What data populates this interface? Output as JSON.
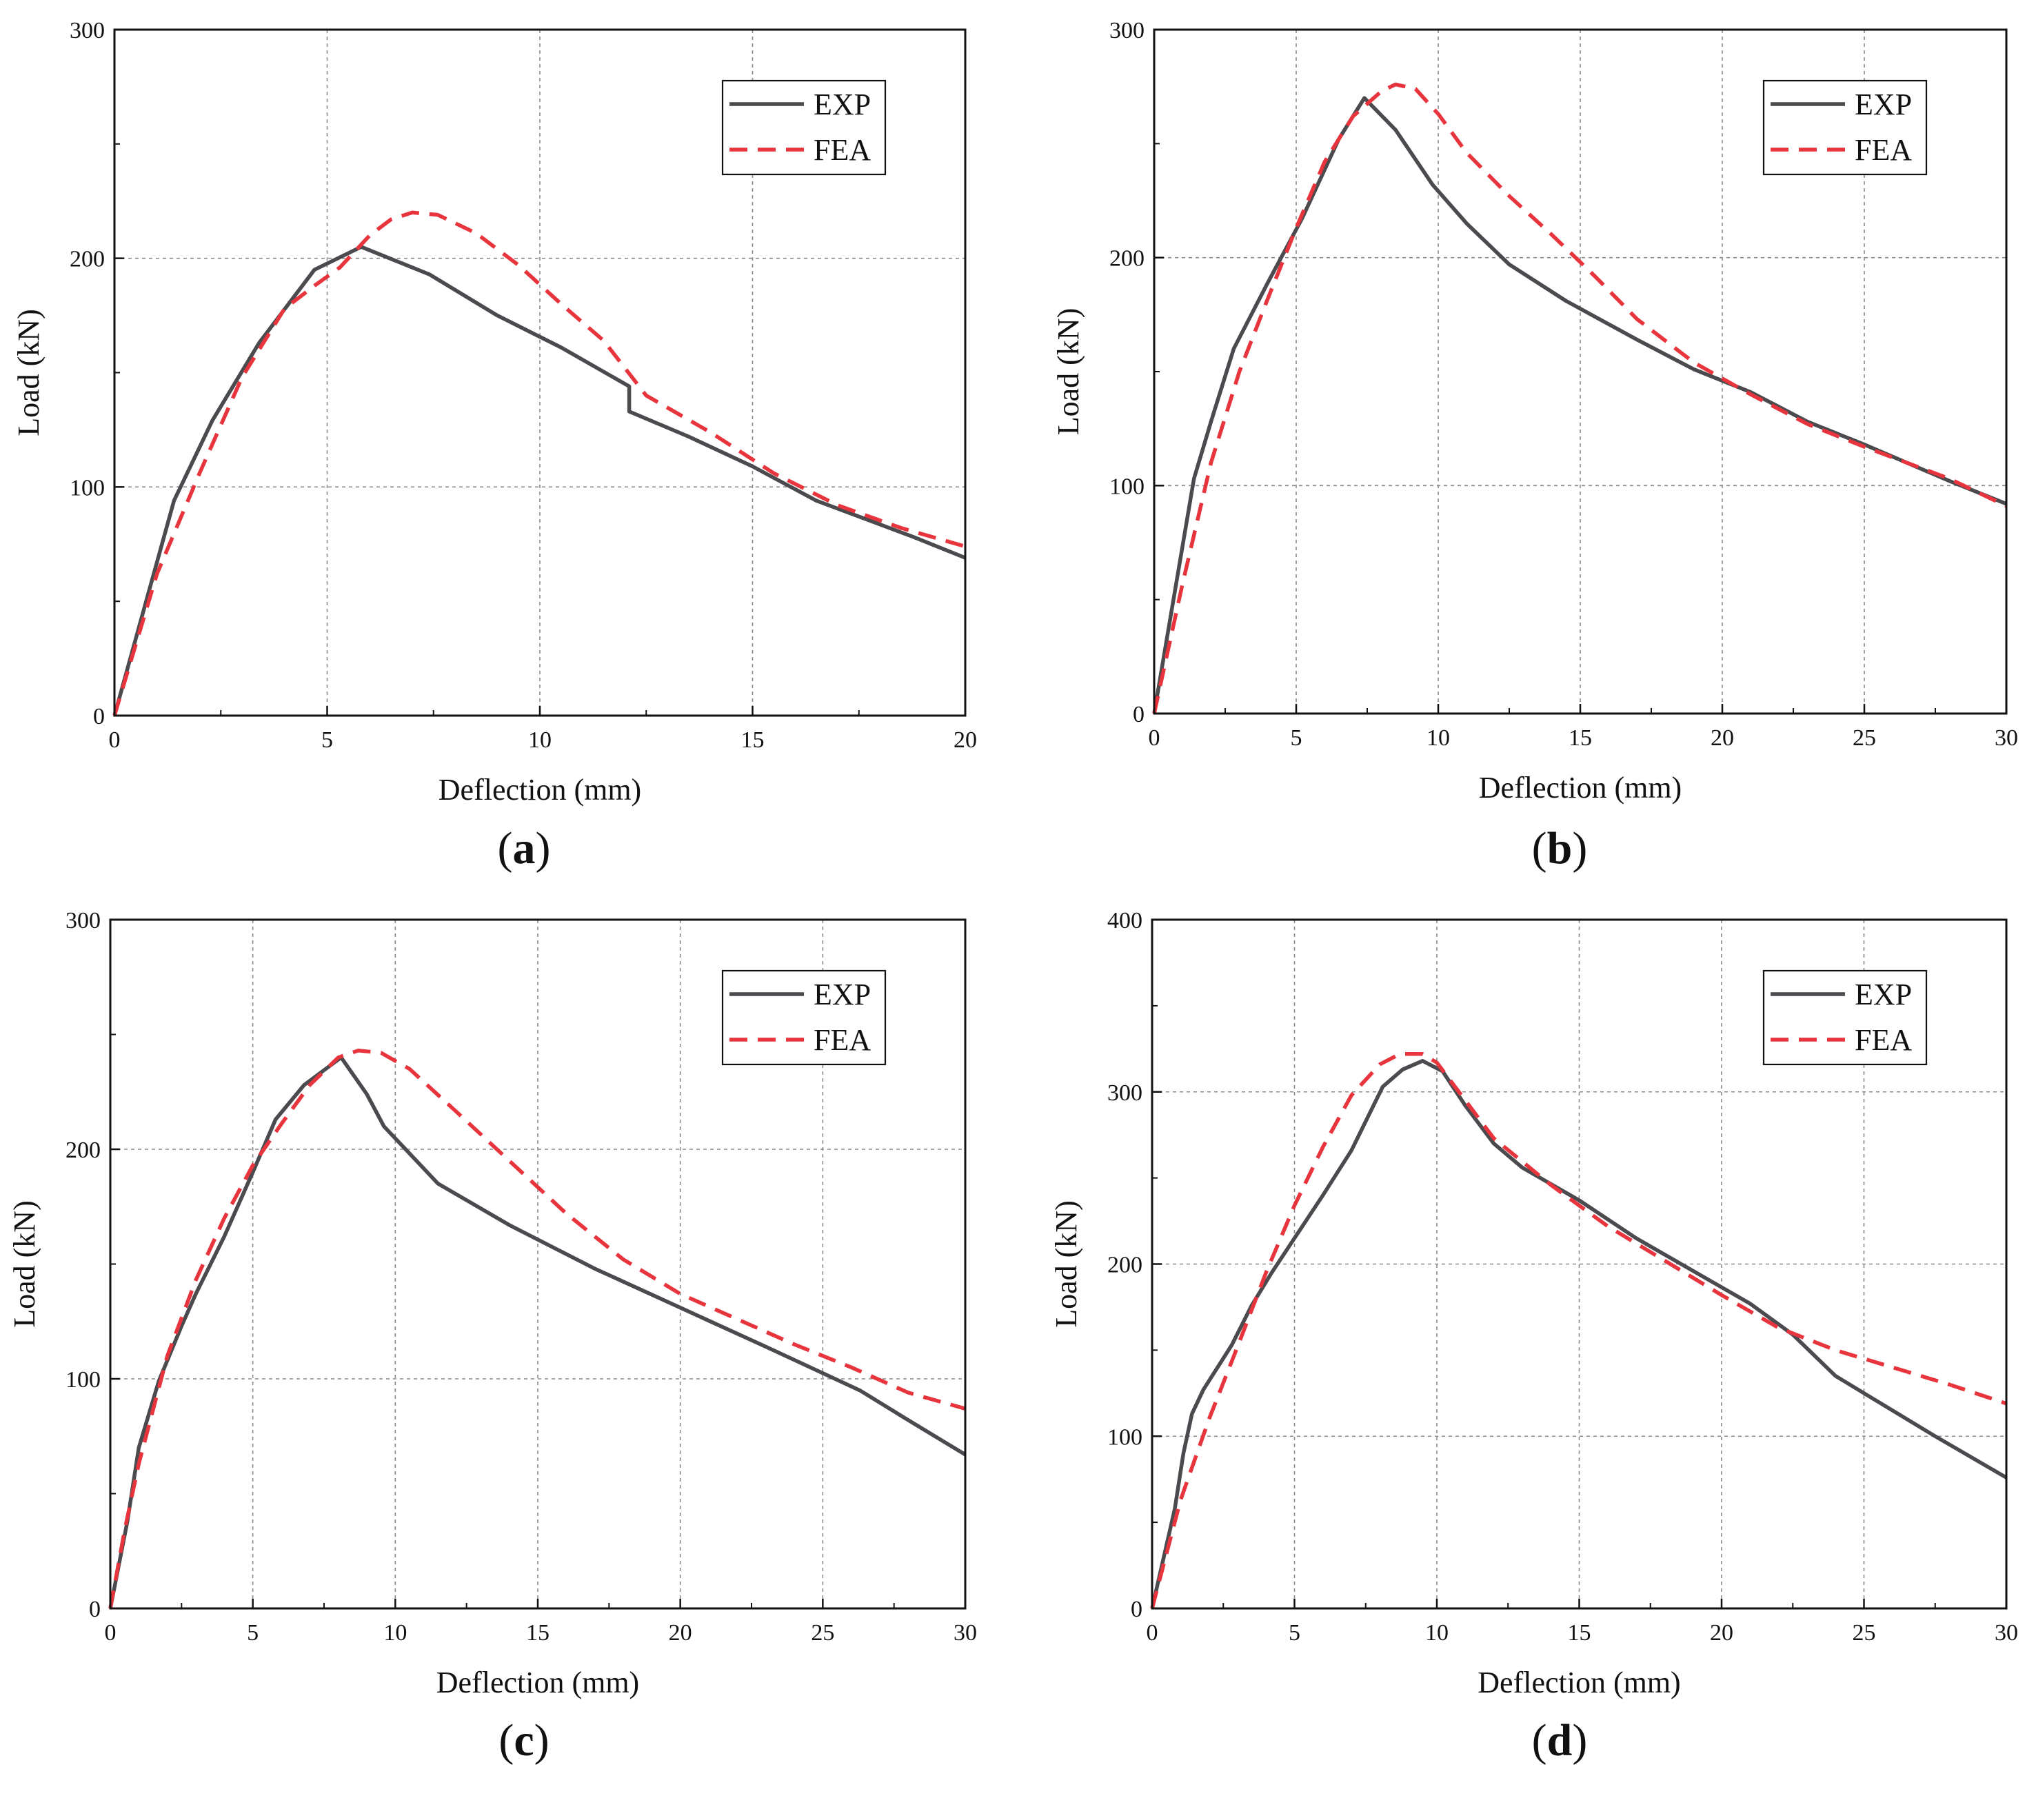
{
  "figure": {
    "colors": {
      "exp": "#4a4a4f",
      "fea": "#e8343c",
      "grid": "#8a8a8a",
      "axis": "#111111"
    }
  },
  "chart_data": [
    {
      "id": "a",
      "type": "line",
      "panel_label": "a",
      "xlabel": "Deflection (mm)",
      "ylabel": "Load (kN)",
      "xlim": [
        0,
        20
      ],
      "ylim": [
        0,
        300
      ],
      "xticks": [
        0,
        5,
        10,
        15,
        20
      ],
      "yticks": [
        0,
        100,
        200,
        300
      ],
      "grid": true,
      "legend_position": "top-right",
      "series": [
        {
          "name": "EXP",
          "style": "solid",
          "x": [
            0,
            1.4,
            2.3,
            3.4,
            4.7,
            5.8,
            7.4,
            9,
            10.5,
            12.1,
            12.1,
            13.5,
            15,
            16.5,
            18.8,
            20
          ],
          "y": [
            0,
            94,
            129,
            163,
            195,
            205,
            193,
            175,
            161,
            144,
            133,
            122,
            109,
            94,
            78,
            69
          ]
        },
        {
          "name": "FEA",
          "style": "dashed",
          "x": [
            0,
            1,
            2,
            3,
            4,
            4.7,
            5.3,
            6,
            6.5,
            7,
            7.6,
            8.5,
            9.5,
            10.5,
            11.5,
            12.5,
            14,
            15.5,
            17,
            18.5,
            20
          ],
          "y": [
            0,
            62,
            106,
            148,
            178,
            188,
            196,
            210,
            217,
            220,
            219,
            211,
            197,
            180,
            164,
            140,
            124,
            106,
            92,
            82,
            74
          ]
        }
      ]
    },
    {
      "id": "b",
      "type": "line",
      "panel_label": "b",
      "xlabel": "Deflection (mm)",
      "ylabel": "Load (kN)",
      "xlim": [
        0,
        30
      ],
      "ylim": [
        0,
        300
      ],
      "xticks": [
        0,
        5,
        10,
        15,
        20,
        25,
        30
      ],
      "yticks": [
        0,
        100,
        200,
        300
      ],
      "grid": true,
      "legend_position": "top-right",
      "series": [
        {
          "name": "EXP",
          "style": "solid",
          "x": [
            0,
            1.4,
            2,
            2.8,
            4,
            5.2,
            6.5,
            7.4,
            8.5,
            9.8,
            11,
            12.5,
            14.5,
            17,
            19,
            21,
            23,
            25,
            28,
            30
          ],
          "y": [
            0,
            103,
            128,
            160,
            189,
            217,
            252,
            270,
            256,
            232,
            215,
            197,
            181,
            164,
            151,
            141,
            128,
            118,
            102,
            92
          ]
        },
        {
          "name": "FEA",
          "style": "dashed",
          "x": [
            0,
            1,
            2,
            3,
            4,
            5,
            6,
            7,
            8,
            8.5,
            9.2,
            10,
            11,
            12.5,
            14,
            15.5,
            17,
            19,
            21,
            23,
            25,
            28,
            30
          ],
          "y": [
            0,
            57,
            110,
            150,
            182,
            213,
            242,
            262,
            273,
            276,
            274,
            263,
            246,
            227,
            210,
            192,
            173,
            154,
            140,
            127,
            117,
            103,
            91
          ]
        }
      ]
    },
    {
      "id": "c",
      "type": "line",
      "panel_label": "c",
      "xlabel": "Deflection (mm)",
      "ylabel": "Load (kN)",
      "xlim": [
        0,
        30
      ],
      "ylim": [
        0,
        300
      ],
      "xticks": [
        0,
        5,
        10,
        15,
        20,
        25,
        30
      ],
      "yticks": [
        0,
        100,
        200,
        300
      ],
      "grid": true,
      "legend_position": "top-right",
      "series": [
        {
          "name": "EXP",
          "style": "solid",
          "x": [
            0,
            0.6,
            1,
            1.7,
            2.5,
            3,
            4,
            5,
            5.8,
            6.8,
            8.1,
            9,
            9.6,
            11.5,
            14,
            17,
            20,
            23,
            26.3,
            28,
            30
          ],
          "y": [
            0,
            38,
            70,
            99,
            123,
            137,
            162,
            190,
            213,
            228,
            240,
            224,
            210,
            185,
            167,
            148,
            131,
            114,
            95,
            82,
            67
          ]
        },
        {
          "name": "FEA",
          "style": "dashed",
          "x": [
            0,
            0.5,
            1,
            2,
            3,
            4,
            5,
            6,
            7,
            8,
            8.7,
            9.5,
            10.5,
            12,
            14,
            16,
            18,
            20,
            22,
            24,
            26,
            28,
            30
          ],
          "y": [
            0,
            34,
            63,
            110,
            143,
            170,
            193,
            211,
            228,
            240,
            243,
            242,
            235,
            218,
            195,
            172,
            152,
            137,
            126,
            115,
            105,
            94,
            87
          ]
        }
      ]
    },
    {
      "id": "d",
      "type": "line",
      "panel_label": "d",
      "xlabel": "Deflection (mm)",
      "ylabel": "Load (kN)",
      "xlim": [
        0,
        30
      ],
      "ylim": [
        0,
        400
      ],
      "xticks": [
        0,
        5,
        10,
        15,
        20,
        25,
        30
      ],
      "yticks": [
        0,
        100,
        200,
        300,
        400
      ],
      "grid": true,
      "legend_position": "top-right",
      "series": [
        {
          "name": "EXP",
          "style": "solid",
          "x": [
            0,
            0.8,
            1.1,
            1.4,
            1.8,
            2.8,
            3.5,
            4.2,
            5,
            6,
            7,
            8.1,
            8.8,
            9.5,
            10.2,
            11,
            12,
            13,
            15,
            17,
            19,
            21,
            22.5,
            24,
            25.5,
            27.5,
            30
          ],
          "y": [
            0,
            58,
            90,
            113,
            127,
            153,
            176,
            195,
            215,
            240,
            266,
            303,
            313,
            318,
            312,
            292,
            270,
            256,
            237,
            215,
            196,
            177,
            159,
            135,
            120,
            100,
            76
          ]
        },
        {
          "name": "FEA",
          "style": "dashed",
          "x": [
            0,
            1,
            2,
            3,
            4,
            5,
            6,
            7,
            8,
            8.7,
            9.5,
            10,
            11,
            12,
            14,
            16,
            18,
            20,
            22,
            24,
            26,
            28,
            30
          ],
          "y": [
            0,
            63,
            110,
            152,
            195,
            234,
            268,
            298,
            316,
            322,
            322,
            317,
            295,
            273,
            246,
            222,
            202,
            182,
            163,
            150,
            140,
            130,
            119
          ]
        }
      ]
    }
  ]
}
